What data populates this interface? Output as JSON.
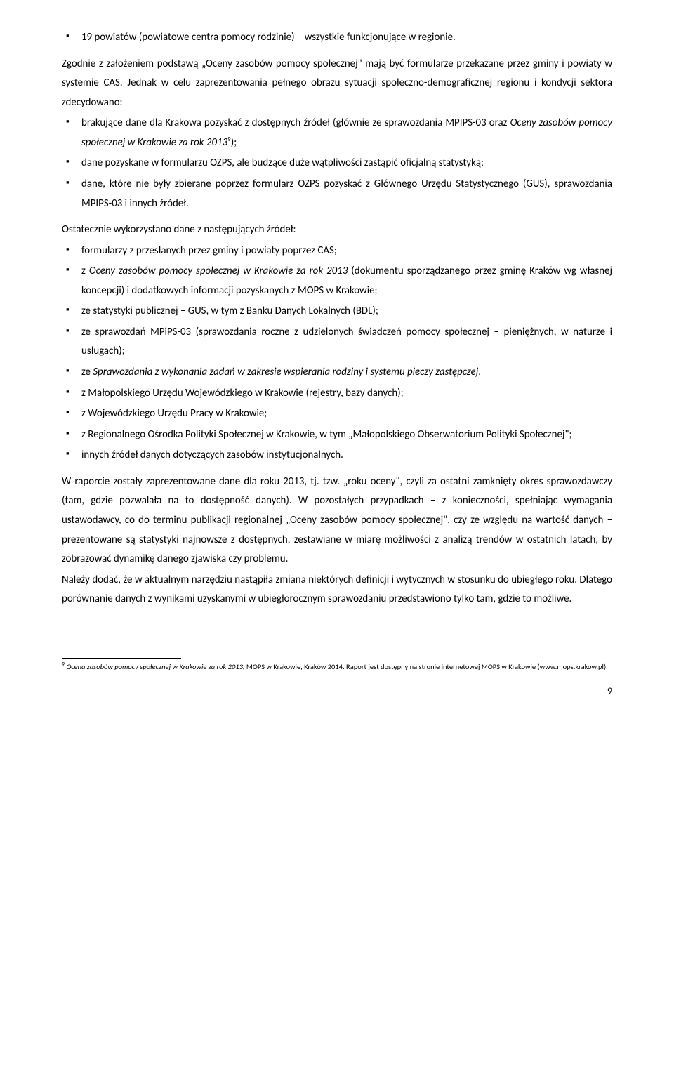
{
  "list1": {
    "item0": "19 powiatów (powiatowe centra pomocy rodzinie) – wszystkie funkcjonujące w regionie."
  },
  "para1": "Zgodnie z założeniem podstawą „Oceny zasobów pomocy społecznej\" mają być formularze przekazane przez gminy i powiaty w systemie CAS. Jednak w celu zaprezentowania pełnego obrazu sytuacji społeczno-demograficznej regionu i kondycji sektora zdecydowano:",
  "list2": {
    "i0_a": "brakujące dane dla Krakowa pozyskać z dostępnych źródeł (głównie ze sprawozdania MPIPS-03 oraz ",
    "i0_b": "Oceny zasobów pomocy społecznej w Krakowie za rok 2013",
    "i0_c": ");",
    "i0_sup": "9",
    "i1": "dane pozyskane w formularzu OZPS, ale budzące duże wątpliwości zastąpić oficjalną statystyką;",
    "i2": "dane, które nie były zbierane poprzez formularz OZPS pozyskać z Głównego Urzędu Statystycznego (GUS), sprawozdania MPIPS-03 i innych źródeł."
  },
  "para2": "Ostatecznie wykorzystano dane z następujących źródeł:",
  "list3": {
    "i0": "formularzy z przesłanych przez gminy i powiaty poprzez CAS;",
    "i1_a": "z ",
    "i1_b": "Oceny zasobów pomocy społecznej w Krakowie za rok 2013",
    "i1_c": " (dokumentu sporządzanego przez gminę Kraków wg własnej koncepcji) i dodatkowych informacji pozyskanych z MOPS w Krakowie;",
    "i2": "ze statystyki publicznej – GUS, w tym z Banku Danych Lokalnych (BDL);",
    "i3": "ze sprawozdań MPiPS-03 (sprawozdania roczne z udzielonych świadczeń pomocy społecznej – pieniężnych, w naturze i usługach);",
    "i4_a": "ze ",
    "i4_b": "Sprawozdania z wykonania zadań w zakresie wspierania rodziny i systemu pieczy zastępczej",
    "i4_c": ",",
    "i5": "z Małopolskiego Urzędu Wojewódzkiego w Krakowie (rejestry, bazy danych);",
    "i6": "z Wojewódzkiego Urzędu Pracy w Krakowie;",
    "i7": "z Regionalnego Ośrodka Polityki Społecznej w Krakowie, w tym „Małopolskiego Obserwatorium Polityki Społecznej\";",
    "i8": "innych źródeł danych dotyczących zasobów instytucjonalnych."
  },
  "para3": "W raporcie zostały zaprezentowane dane dla roku 2013, tj. tzw. „roku oceny\", czyli za ostatni zamknięty okres sprawozdawczy (tam, gdzie pozwalała na to dostępność danych). W pozostałych przypadkach – z konieczności, spełniając wymagania ustawodawcy, co do terminu publikacji regionalnej „Oceny zasobów pomocy społecznej\", czy ze względu na wartość danych – prezentowane są statystyki najnowsze z dostępnych, zestawiane w miarę możliwości z analizą trendów w ostatnich latach, by zobrazować dynamikę danego zjawiska czy problemu.",
  "para4": "Należy dodać, że w aktualnym narzędziu nastąpiła zmiana niektórych definicji i wytycznych w stosunku do ubiegłego roku. Dlatego porównanie danych z wynikami uzyskanymi w ubiegłorocznym sprawozdaniu przedstawiono tylko tam, gdzie to możliwe.",
  "footnote": {
    "num": "9",
    "a": " ",
    "b": "Ocena zasobów pomocy społecznej w Krakowie za rok 2013,",
    "c": " MOPS w Krakowie, Kraków 2014. Raport jest dostępny na stronie internetowej MOPS w Krakowie (www.mops.krakow.pl)."
  },
  "pagenum": "9"
}
